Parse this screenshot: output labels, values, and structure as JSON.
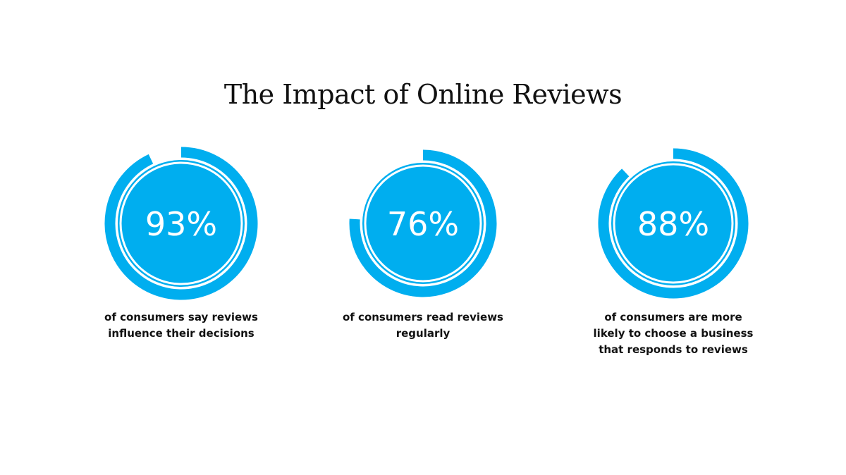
{
  "title": "The Impact of Online Reviews",
  "colors": {
    "accent": "#00AEEF",
    "ring_track": "#ffffff",
    "text": "#111111"
  },
  "chart_data": {
    "type": "radial-progress",
    "title": "The Impact of Online Reviews",
    "items": [
      {
        "value": 93,
        "label": "93%",
        "caption": [
          "of consumers say reviews",
          "influence their decisions"
        ]
      },
      {
        "value": 76,
        "label": "76%",
        "caption": [
          "of consumers read reviews",
          "regularly"
        ]
      },
      {
        "value": 88,
        "label": "88%",
        "caption": [
          "of consumers are more",
          "likely to choose a business",
          "that responds to reviews"
        ]
      }
    ]
  }
}
